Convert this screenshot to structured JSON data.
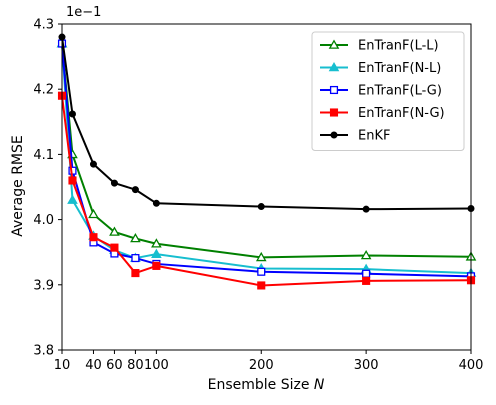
{
  "chart_data": {
    "type": "line",
    "xlabel": "Ensemble Size N",
    "xlabel_prefix": "Ensemble Size ",
    "xlabel_var": "N",
    "ylabel": "Average RMSE",
    "scale_note": "1e−1",
    "xlim": [
      10,
      400
    ],
    "ylim": [
      3.8,
      4.3
    ],
    "xticks": [
      10,
      40,
      60,
      80,
      100,
      200,
      300,
      400
    ],
    "yticks": [
      3.8,
      3.9,
      4.0,
      4.1,
      4.2,
      4.3
    ],
    "xtick_labels": [
      "10",
      "40",
      "60",
      "80",
      "100",
      "200",
      "300",
      "400"
    ],
    "ytick_labels": [
      "3.8",
      "3.9",
      "4.0",
      "4.1",
      "4.2",
      "4.3"
    ],
    "grid": false,
    "legend_position": "top-right",
    "x": [
      10,
      20,
      40,
      60,
      80,
      100,
      200,
      300,
      400
    ],
    "series": [
      {
        "name": "EnTranF(L-L)",
        "color": "#008000",
        "marker": "triangle-open",
        "values": [
          4.27,
          4.1,
          4.008,
          3.981,
          3.971,
          3.963,
          3.942,
          3.945,
          3.943
        ]
      },
      {
        "name": "EnTranF(N-L)",
        "color": "#17becf",
        "marker": "triangle-filled",
        "values": [
          4.27,
          4.03,
          3.975,
          3.953,
          3.941,
          3.947,
          3.925,
          3.924,
          3.918
        ]
      },
      {
        "name": "EnTranF(L-G)",
        "color": "#0000ff",
        "marker": "square-open",
        "values": [
          4.27,
          4.075,
          3.965,
          3.948,
          3.941,
          3.932,
          3.92,
          3.917,
          3.913
        ]
      },
      {
        "name": "EnTranF(N-G)",
        "color": "#ff0000",
        "marker": "square-filled",
        "values": [
          4.19,
          4.06,
          3.973,
          3.957,
          3.918,
          3.929,
          3.899,
          3.906,
          3.907
        ]
      },
      {
        "name": "EnKF",
        "color": "#000000",
        "marker": "circle-filled",
        "values": [
          4.28,
          4.162,
          4.085,
          4.056,
          4.046,
          4.025,
          4.02,
          4.016,
          4.017
        ]
      }
    ]
  }
}
